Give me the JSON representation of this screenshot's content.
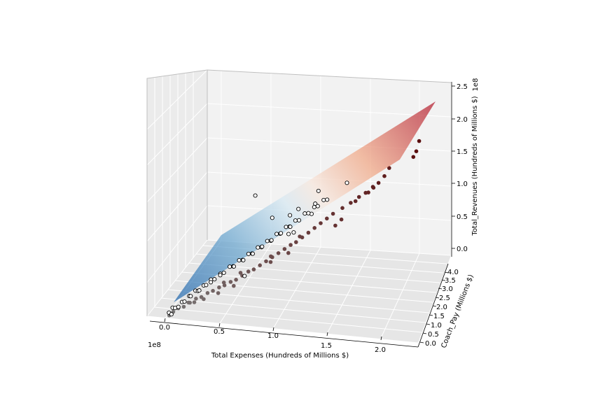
{
  "chart_data": {
    "type": "scatter",
    "plot_kind": "3d-scatter-with-regression-plane",
    "xlabel": "Total Expenses (Hundreds of Millions $)",
    "ylabel": "Coach_Pay (Millions $)",
    "zlabel": "Total_Revenues (Hundreds of Millions $)",
    "x_offset_label": "1e8",
    "z_offset_label": "1e8",
    "x_ticks": [
      "0.0",
      "0.5",
      "1.0",
      "1.5",
      "2.0"
    ],
    "y_ticks": [
      "0.0",
      "0.5",
      "1.0",
      "1.5",
      "2.0",
      "2.5",
      "3.0",
      "3.5",
      "4.0"
    ],
    "z_ticks": [
      "0.0",
      "0.5",
      "1.0",
      "1.5",
      "2.0",
      "2.5"
    ],
    "xlim": [
      0.0,
      2.3
    ],
    "ylim": [
      0.0,
      4.2
    ],
    "zlim": [
      0.0,
      2.5
    ],
    "grid": true,
    "surface_colormap": [
      "#2166ac",
      "#92c5de",
      "#f7f7f7",
      "#f4a582",
      "#b2182b"
    ],
    "points_above_plane": [
      [
        0.8,
        0.5,
        1.85
      ],
      [
        1.35,
        1.0,
        1.85
      ],
      [
        1.2,
        0.5,
        1.7
      ],
      [
        1.6,
        1.2,
        1.95
      ],
      [
        1.1,
        0.8,
        1.5
      ],
      [
        0.95,
        0.6,
        1.5
      ],
      [
        1.3,
        0.8,
        1.55
      ],
      [
        1.32,
        1.0,
        1.65
      ],
      [
        0.7,
        0.5,
        0.6
      ],
      [
        1.12,
        1.0,
        1.18
      ],
      [
        1.08,
        0.9,
        1.18
      ],
      [
        0.02,
        0.2,
        0.03
      ],
      [
        0.04,
        0.4,
        0.05
      ],
      [
        0.05,
        0.1,
        0.04
      ],
      [
        0.07,
        0.3,
        0.08
      ],
      [
        0.1,
        0.3,
        0.1
      ],
      [
        0.12,
        0.5,
        0.12
      ],
      [
        0.15,
        0.4,
        0.16
      ],
      [
        0.18,
        0.6,
        0.19
      ],
      [
        0.2,
        0.5,
        0.22
      ],
      [
        0.23,
        0.7,
        0.25
      ],
      [
        0.26,
        0.6,
        0.28
      ],
      [
        0.3,
        0.8,
        0.31
      ],
      [
        0.33,
        0.7,
        0.35
      ],
      [
        0.36,
        0.9,
        0.38
      ],
      [
        0.4,
        0.8,
        0.42
      ],
      [
        0.44,
        1.0,
        0.45
      ],
      [
        0.48,
        0.9,
        0.5
      ],
      [
        0.52,
        1.1,
        0.54
      ],
      [
        0.56,
        1.0,
        0.58
      ],
      [
        0.6,
        1.2,
        0.62
      ],
      [
        0.64,
        1.1,
        0.66
      ],
      [
        0.68,
        1.3,
        0.7
      ],
      [
        0.72,
        1.2,
        0.74
      ],
      [
        0.76,
        1.4,
        0.78
      ],
      [
        0.8,
        1.3,
        0.82
      ],
      [
        0.84,
        1.5,
        0.86
      ],
      [
        0.88,
        1.4,
        0.9
      ],
      [
        0.92,
        1.6,
        0.95
      ],
      [
        0.96,
        1.5,
        0.99
      ],
      [
        1.0,
        1.7,
        1.04
      ],
      [
        1.04,
        1.6,
        1.08
      ],
      [
        1.08,
        1.8,
        1.12
      ],
      [
        1.12,
        1.7,
        1.16
      ],
      [
        1.16,
        1.9,
        1.21
      ],
      [
        1.2,
        1.8,
        1.25
      ],
      [
        1.24,
        2.0,
        1.29
      ],
      [
        1.28,
        1.9,
        1.34
      ],
      [
        1.32,
        2.1,
        1.38
      ],
      [
        1.36,
        2.0,
        1.42
      ],
      [
        0.28,
        0.5,
        0.32
      ],
      [
        0.38,
        0.6,
        0.43
      ],
      [
        0.46,
        0.7,
        0.52
      ],
      [
        0.58,
        0.8,
        0.64
      ],
      [
        0.66,
        0.9,
        0.72
      ],
      [
        0.74,
        1.0,
        0.8
      ],
      [
        0.82,
        1.1,
        0.89
      ],
      [
        0.9,
        1.2,
        0.97
      ],
      [
        0.98,
        1.3,
        1.06
      ],
      [
        1.06,
        1.4,
        1.14
      ]
    ],
    "points_below_plane": [
      [
        2.1,
        3.6,
        1.95
      ],
      [
        2.08,
        3.5,
        1.82
      ],
      [
        2.06,
        3.4,
        1.76
      ],
      [
        1.85,
        3.2,
        1.62
      ],
      [
        1.82,
        3.0,
        1.55
      ],
      [
        1.78,
        2.8,
        1.5
      ],
      [
        1.74,
        2.7,
        1.45
      ],
      [
        1.7,
        2.6,
        1.4
      ],
      [
        1.62,
        2.5,
        1.35
      ],
      [
        1.55,
        2.4,
        1.28
      ],
      [
        1.48,
        2.3,
        1.22
      ],
      [
        1.4,
        2.2,
        1.15
      ],
      [
        1.35,
        2.1,
        1.1
      ],
      [
        1.3,
        2.0,
        1.05
      ],
      [
        1.25,
        1.9,
        1.0
      ],
      [
        1.2,
        1.8,
        0.95
      ],
      [
        1.15,
        1.7,
        0.9
      ],
      [
        1.1,
        1.6,
        0.85
      ],
      [
        1.05,
        1.6,
        0.8
      ],
      [
        1.0,
        1.5,
        0.76
      ],
      [
        0.95,
        1.4,
        0.72
      ],
      [
        0.9,
        1.3,
        0.68
      ],
      [
        0.85,
        1.2,
        0.64
      ],
      [
        0.8,
        1.1,
        0.6
      ],
      [
        0.75,
        1.0,
        0.56
      ],
      [
        0.7,
        1.0,
        0.52
      ],
      [
        0.65,
        0.9,
        0.48
      ],
      [
        0.6,
        0.8,
        0.44
      ],
      [
        0.55,
        0.8,
        0.4
      ],
      [
        0.5,
        0.7,
        0.37
      ],
      [
        0.45,
        0.7,
        0.33
      ],
      [
        0.4,
        0.6,
        0.3
      ],
      [
        0.35,
        0.6,
        0.26
      ],
      [
        0.3,
        0.5,
        0.22
      ],
      [
        0.25,
        0.5,
        0.19
      ],
      [
        0.2,
        0.4,
        0.15
      ],
      [
        0.15,
        0.3,
        0.11
      ],
      [
        0.1,
        0.3,
        0.08
      ],
      [
        0.06,
        0.2,
        0.05
      ],
      [
        0.03,
        0.1,
        0.02
      ],
      [
        1.45,
        2.6,
        0.95
      ],
      [
        1.4,
        2.5,
        0.88
      ],
      [
        1.0,
        2.0,
        0.55
      ],
      [
        0.85,
        1.8,
        0.45
      ],
      [
        0.55,
        1.2,
        0.22
      ],
      [
        0.42,
        1.0,
        0.15
      ],
      [
        0.3,
        0.8,
        0.1
      ],
      [
        0.22,
        0.7,
        0.07
      ],
      [
        1.58,
        2.6,
        1.25
      ],
      [
        1.66,
        2.8,
        1.33
      ],
      [
        1.72,
        2.9,
        1.4
      ],
      [
        1.12,
        1.8,
        0.88
      ],
      [
        0.88,
        1.4,
        0.66
      ],
      [
        0.62,
        1.1,
        0.46
      ],
      [
        0.48,
        0.9,
        0.35
      ],
      [
        0.18,
        0.5,
        0.12
      ]
    ]
  }
}
